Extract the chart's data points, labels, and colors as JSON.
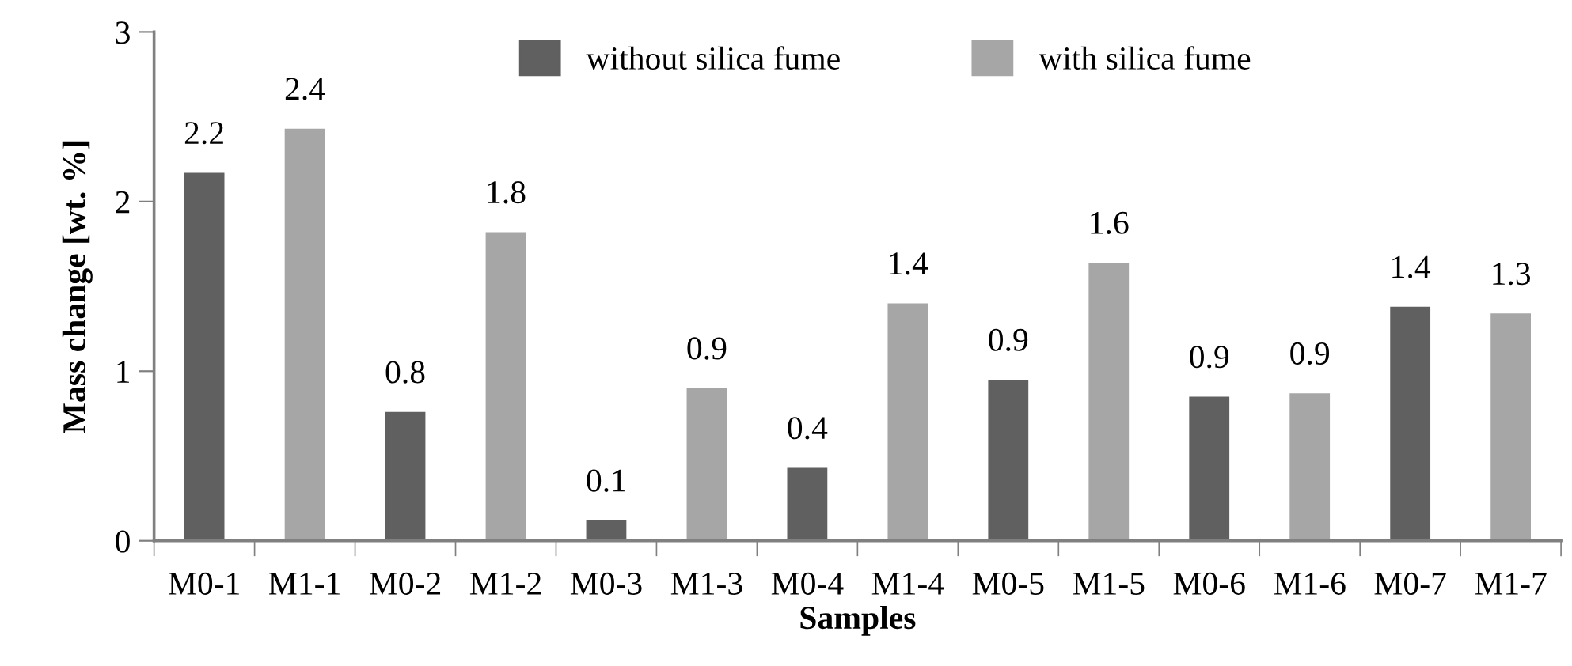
{
  "chart_data": {
    "type": "bar",
    "xlabel": "Samples",
    "ylabel": "Mass change [wt. %]",
    "categories": [
      "M0-1",
      "M1-1",
      "M0-2",
      "M1-2",
      "M0-3",
      "M1-3",
      "M0-4",
      "M1-4",
      "M0-5",
      "M1-5",
      "M0-6",
      "M1-6",
      "M0-7",
      "M1-7"
    ],
    "series": [
      {
        "name": "without silica fume",
        "color": "#606060",
        "values": [
          2.17,
          null,
          0.76,
          null,
          0.12,
          null,
          0.43,
          null,
          0.95,
          null,
          0.85,
          null,
          1.38,
          null
        ],
        "value_labels": [
          "2.2",
          null,
          "0.8",
          null,
          "0.1",
          null,
          "0.4",
          null,
          "0.9",
          null,
          "0.9",
          null,
          "1.4",
          null
        ]
      },
      {
        "name": "with silica fume",
        "color": "#a6a6a6",
        "values": [
          null,
          2.43,
          null,
          1.82,
          null,
          0.9,
          null,
          1.4,
          null,
          1.64,
          null,
          0.87,
          null,
          1.34
        ],
        "value_labels": [
          null,
          "2.4",
          null,
          "1.8",
          null,
          "0.9",
          null,
          "1.4",
          null,
          "1.6",
          null,
          "0.9",
          null,
          "1.3"
        ]
      }
    ],
    "ylim": [
      0,
      3
    ],
    "yticks": [
      0,
      1,
      2,
      3
    ],
    "legend": "top",
    "grid": false
  }
}
